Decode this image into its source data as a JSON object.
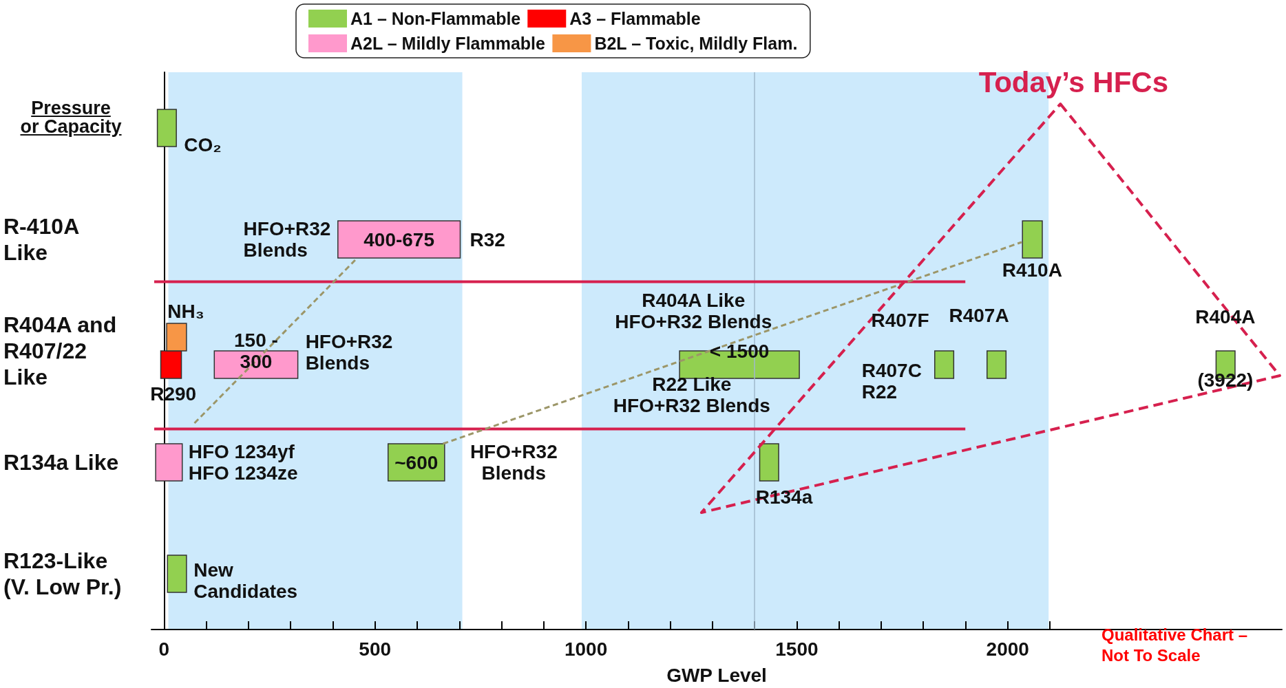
{
  "chart_data": {
    "type": "bar",
    "orientation": "horizontal",
    "categories": [
      null,
      "R-410A Like",
      "R404A and R407/22 Like",
      "R134a Like",
      "R123-Like (V. Low Pr.)"
    ],
    "series": [
      {
        "name": "A1 – Non-Flammable",
        "color": "#92d050",
        "values": [
          45,
          47,
          284,
          45,
          45
        ],
        "base": [
          -16,
          2035,
          1222,
          1412,
          8
        ]
      },
      {
        "name": "A3 – Flammable",
        "color": "#ff0000",
        "values": [
          null,
          null,
          49,
          null,
          null
        ],
        "base": [
          null,
          null,
          -8,
          null,
          null
        ]
      },
      {
        "name": "A2L – Mildly Flammable",
        "color": "#ff99cc",
        "values": [
          null,
          290,
          198,
          63,
          null
        ],
        "base": [
          null,
          412,
          119,
          -20,
          null
        ]
      },
      {
        "name": "B2L – Toxic, Mildly Flam.",
        "color": "#f79646",
        "values": [
          null,
          null,
          47,
          null,
          null
        ],
        "base": [
          null,
          null,
          6,
          null,
          null
        ]
      },
      {
        "color": "#92d050",
        "values": [
          null,
          null,
          45,
          134,
          null
        ],
        "base": [
          null,
          null,
          1827,
          531,
          null
        ]
      },
      {
        "color": "#92d050",
        "values": [
          null,
          null,
          45,
          null,
          null
        ],
        "base": [
          null,
          null,
          1951,
          null,
          null
        ]
      },
      {
        "color": "#92d050",
        "values": [
          null,
          null,
          45,
          null,
          null
        ],
        "base": [
          null,
          null,
          2494,
          null,
          null
        ]
      }
    ],
    "xlim": [
      -30,
      2650
    ],
    "xticks": [
      0,
      {
        "value": 100,
        "label": null
      },
      {
        "value": 200,
        "label": null
      },
      {
        "value": 300,
        "label": null
      },
      {
        "value": 400,
        "label": null
      },
      500,
      {
        "value": 600,
        "label": null
      },
      {
        "value": 700,
        "label": null
      },
      {
        "value": 800,
        "label": null
      },
      {
        "value": 900,
        "label": null
      },
      1000,
      {
        "value": 1100,
        "label": null
      },
      {
        "value": 1200,
        "label": null
      },
      {
        "value": 1300,
        "label": null
      },
      {
        "value": 1400,
        "label": null
      },
      1500,
      {
        "value": 1600,
        "label": null
      },
      {
        "value": 1700,
        "label": null
      },
      {
        "value": 1800,
        "label": null
      },
      {
        "value": 1900,
        "label": null
      },
      2000,
      {
        "value": 2100,
        "label": null
      }
    ],
    "xlabel": "GWP Level",
    "ylabel": "Pressure or Capacity",
    "legend": "top",
    "bands": [
      {
        "axis": "x",
        "from": 10,
        "to": 707,
        "color": "#cdeafc"
      },
      {
        "axis": "x",
        "from": 990,
        "to": 2097,
        "color": "#cdeafc"
      }
    ],
    "ref_lines": [
      {
        "axis": "x",
        "value": 1400,
        "color": "#9fb9cc"
      }
    ],
    "annotations": [
      "Today’s HFCs",
      "Qualitative Chart –\nNot To Scale",
      "CO₂",
      "HFO+R32\nBlends",
      "400-675",
      "R32",
      "R410A",
      "R404A Like\nHFO+R32 Blends",
      "< 1500",
      "R22 Like\nHFO+R32 Blends",
      "R407F",
      "R407A",
      "R407C\nR22",
      "R404A",
      "(3922)",
      "NH₃",
      {
        "text": "R290",
        "x": 16,
        "y": "R404A and R407/22 Like"
      },
      "150 -\n300",
      "HFO+R32\nBlends",
      {
        "text": "HFO 1234yf\nHFO 1234ze",
        "x": 12,
        "y": "R134a Like"
      },
      "~600",
      "HFO+R32\nBlends",
      "R134a",
      "New\nCandidates"
    ]
  }
}
